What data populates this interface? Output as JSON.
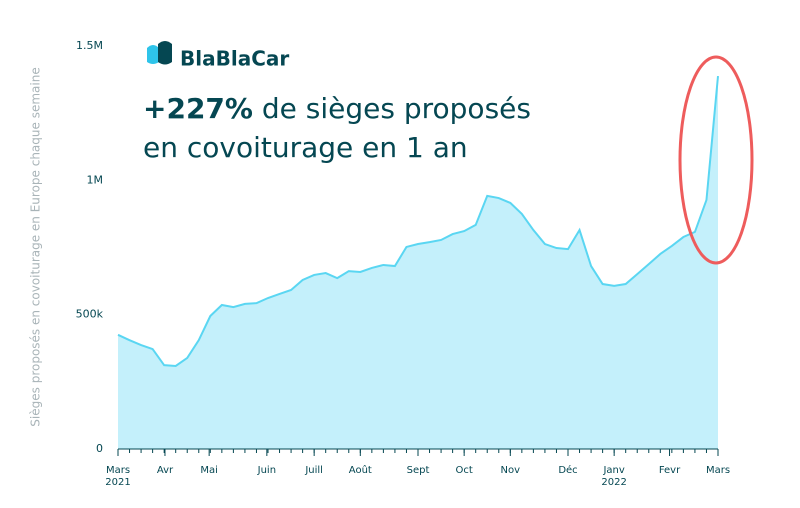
{
  "chart_data": {
    "type": "area",
    "brand": "BlaBlaCar",
    "headline_bold": "+227%",
    "headline_rest": "de sièges proposés",
    "headline_line2": "en covoiturage en 1 an",
    "y_label": "Sièges proposés en covoiturage en Europe chaque semaine",
    "line_color": "#5ad6f2",
    "fill_color": "#c4f0fb",
    "x": [
      0,
      1,
      2,
      3,
      4,
      5,
      6,
      7,
      8,
      9,
      10,
      11,
      12,
      13,
      14,
      15,
      16,
      17,
      18,
      19,
      20,
      21,
      22,
      23,
      24,
      25,
      26,
      27,
      28,
      29,
      30,
      31,
      32,
      33,
      34,
      35,
      36,
      37,
      38,
      39,
      40,
      41,
      42,
      43,
      44,
      45,
      46,
      47,
      48,
      49,
      50,
      51,
      52
    ],
    "values": [
      425000,
      405000,
      387000,
      372000,
      312000,
      309000,
      339000,
      405000,
      495000,
      536000,
      528000,
      540000,
      543000,
      562000,
      577000,
      592000,
      629000,
      648000,
      655000,
      636000,
      662000,
      659000,
      674000,
      685000,
      681000,
      752000,
      763000,
      770000,
      778000,
      800000,
      811000,
      834000,
      942000,
      934000,
      916000,
      875000,
      815000,
      763000,
      748000,
      744000,
      815000,
      681000,
      614000,
      607000,
      614000,
      651000,
      688000,
      726000,
      756000,
      789000,
      808000,
      927000,
      1388000
    ],
    "xlim": [
      0,
      52
    ],
    "xticks": [
      {
        "value": 0,
        "label": "Mars"
      },
      {
        "value": 4.07,
        "label": "Avr"
      },
      {
        "value": 7.9,
        "label": "Mai"
      },
      {
        "value": 12.9,
        "label": "Juin"
      },
      {
        "value": 17,
        "label": "Juill"
      },
      {
        "value": 21,
        "label": "Août"
      },
      {
        "value": 26,
        "label": "Sept"
      },
      {
        "value": 30,
        "label": "Oct"
      },
      {
        "value": 34,
        "label": "Nov"
      },
      {
        "value": 39,
        "label": "Déc"
      },
      {
        "value": 43,
        "label": "Janv"
      },
      {
        "value": 47.8,
        "label": "Fevr"
      },
      {
        "value": 52,
        "label": "Mars"
      }
    ],
    "x_years": [
      {
        "value": 0,
        "label": "2021"
      },
      {
        "value": 43,
        "label": "2022"
      }
    ],
    "ylim": [
      0,
      1500000
    ],
    "yticks": [
      {
        "value": 0,
        "label": "0"
      },
      {
        "value": 500000,
        "label": "500k"
      },
      {
        "value": 1000000,
        "label": "1M"
      },
      {
        "value": 1500000,
        "label": "1.5M"
      }
    ]
  }
}
